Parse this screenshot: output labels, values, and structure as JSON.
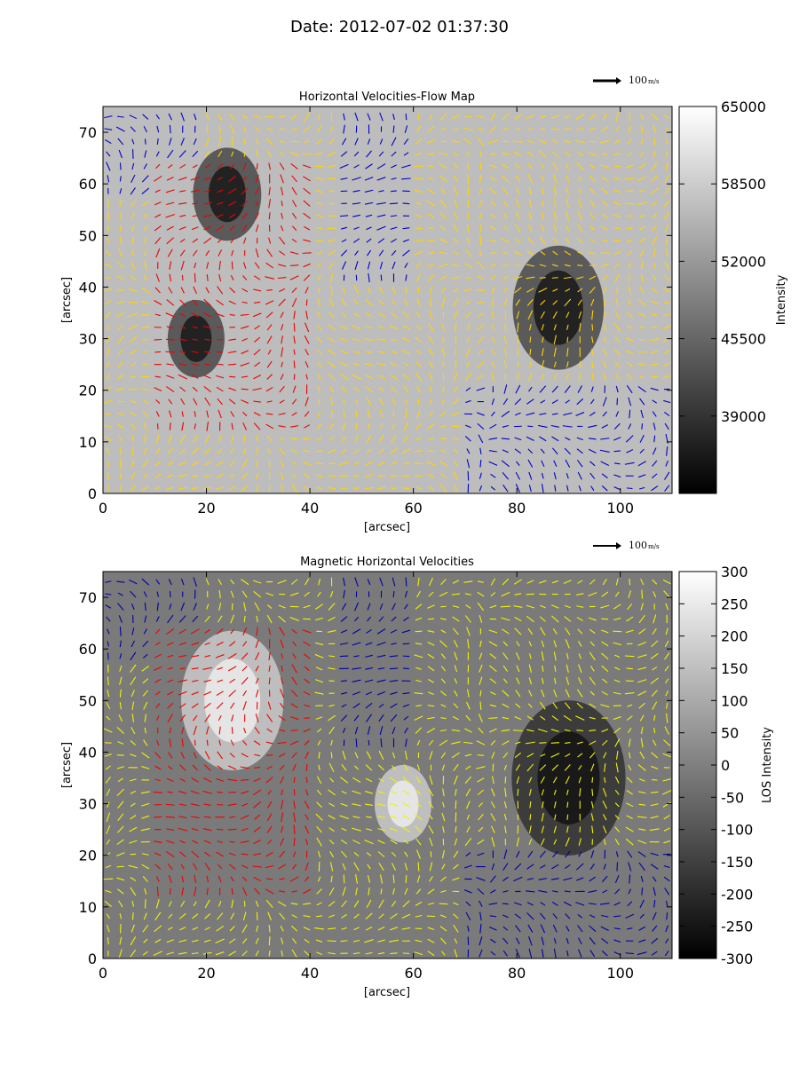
{
  "figure": {
    "title": "Date: 2012-07-02 01:37:30"
  },
  "chart_data": [
    {
      "type": "heatmap",
      "title": "Horizontal Velocities-Flow Map",
      "xlabel": "[arcsec]",
      "ylabel": "[arcsec]",
      "xlim": [
        0,
        110
      ],
      "ylim": [
        0,
        75
      ],
      "xticks": [
        0,
        20,
        40,
        60,
        80,
        100
      ],
      "yticks": [
        0,
        10,
        20,
        30,
        40,
        50,
        60,
        70
      ],
      "colorbar": {
        "label": "Intensity",
        "range": [
          32500,
          65000
        ],
        "ticks": [
          39000,
          45500,
          52000,
          58500,
          65000
        ]
      },
      "vector_key": "100",
      "vector_key_unit": "m/s",
      "vector_colors": [
        "#ffd400",
        "#ee0000",
        "#0000cc"
      ],
      "features": [
        {
          "x": 88,
          "y": 36,
          "r": 8,
          "kind": "dark"
        },
        {
          "x": 24,
          "y": 58,
          "r": 6,
          "kind": "dark"
        },
        {
          "x": 18,
          "y": 30,
          "r": 5,
          "kind": "dark"
        }
      ]
    },
    {
      "type": "heatmap",
      "title": "Magnetic Horizontal Velocities",
      "xlabel": "[arcsec]",
      "ylabel": "[arcsec]",
      "xlim": [
        0,
        110
      ],
      "ylim": [
        0,
        75
      ],
      "xticks": [
        0,
        20,
        40,
        60,
        80,
        100
      ],
      "yticks": [
        0,
        10,
        20,
        30,
        40,
        50,
        60,
        70
      ],
      "colorbar": {
        "label": "LOS Intensity",
        "range": [
          -300,
          300
        ],
        "ticks": [
          -300,
          -250,
          -200,
          -150,
          -100,
          -50,
          0,
          50,
          100,
          150,
          200,
          250,
          300
        ]
      },
      "vector_key": "100",
      "vector_key_unit": "m/s",
      "vector_colors": [
        "#f2f200",
        "#ee0000",
        "#0000aa"
      ],
      "features": [
        {
          "x": 90,
          "y": 35,
          "r": 10,
          "kind": "dark"
        },
        {
          "x": 25,
          "y": 50,
          "r": 9,
          "kind": "bright"
        },
        {
          "x": 58,
          "y": 30,
          "r": 5,
          "kind": "bright"
        }
      ]
    }
  ]
}
